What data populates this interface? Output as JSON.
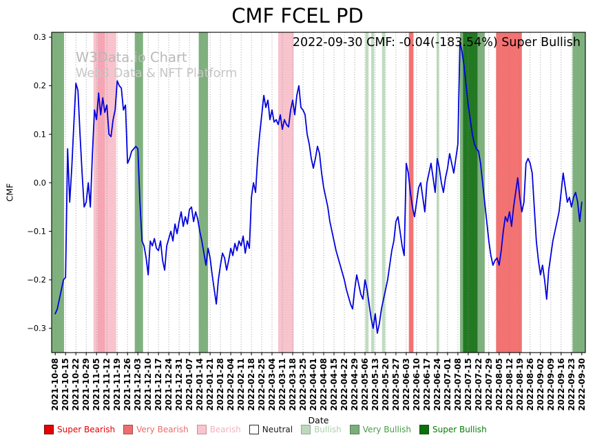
{
  "chart_data": {
    "type": "line",
    "title": "CMF FCEL PD",
    "annotation": "2022-09-30 CMF: -0.04(-183.54%) Super Bullish",
    "current": {
      "date": "2022-09-30",
      "cmf": -0.04,
      "change_pct": -183.54,
      "signal": "Super Bullish"
    },
    "watermark": {
      "line1": "W3Data.io Chart",
      "line2": "Web3 Data & NFT Platform"
    },
    "xlabel": "Date",
    "ylabel": "CMF",
    "ylim": [
      -0.35,
      0.31
    ],
    "yticks": [
      0.3,
      0.2,
      0.1,
      0.0,
      -0.1,
      -0.2,
      -0.3
    ],
    "grid": "vertical-dotted",
    "legend_position": "bottom",
    "x_tick_labels": [
      "2021-10-08",
      "2021-10-15",
      "2021-10-22",
      "2021-10-29",
      "2021-11-05",
      "2021-11-12",
      "2021-11-19",
      "2021-11-26",
      "2021-12-03",
      "2021-12-10",
      "2021-12-17",
      "2021-12-24",
      "2021-12-31",
      "2022-01-07",
      "2022-01-14",
      "2022-01-21",
      "2022-01-28",
      "2022-02-04",
      "2022-02-11",
      "2022-02-18",
      "2022-02-25",
      "2022-03-04",
      "2022-03-11",
      "2022-03-18",
      "2022-03-25",
      "2022-04-01",
      "2022-04-08",
      "2022-04-15",
      "2022-04-22",
      "2022-04-29",
      "2022-05-06",
      "2022-05-13",
      "2022-05-20",
      "2022-05-27",
      "2022-06-03",
      "2022-06-10",
      "2022-06-17",
      "2022-06-24",
      "2022-07-01",
      "2022-07-08",
      "2022-07-15",
      "2022-07-22",
      "2022-07-29",
      "2022-08-05",
      "2022-08-12",
      "2022-08-19",
      "2022-08-26",
      "2022-09-02",
      "2022-09-09",
      "2022-09-16",
      "2022-09-23",
      "2022-09-30"
    ],
    "series": [
      {
        "name": "CMF",
        "color": "#0000dd",
        "points_per_week": 5,
        "values": [
          -0.27,
          -0.26,
          -0.24,
          -0.22,
          -0.2,
          -0.195,
          0.07,
          -0.04,
          0.03,
          0.12,
          0.205,
          0.19,
          0.1,
          0.02,
          -0.05,
          -0.04,
          0,
          -0.05,
          0.06,
          0.15,
          0.13,
          0.185,
          0.14,
          0.175,
          0.145,
          0.16,
          0.1,
          0.095,
          0.13,
          0.15,
          0.21,
          0.2,
          0.195,
          0.15,
          0.16,
          0.04,
          0.05,
          0.065,
          0.07,
          0.075,
          0.07,
          -0.04,
          -0.12,
          -0.13,
          -0.155,
          -0.19,
          -0.12,
          -0.13,
          -0.115,
          -0.135,
          -0.14,
          -0.12,
          -0.16,
          -0.18,
          -0.13,
          -0.115,
          -0.1,
          -0.12,
          -0.085,
          -0.105,
          -0.08,
          -0.06,
          -0.09,
          -0.07,
          -0.085,
          -0.055,
          -0.05,
          -0.08,
          -0.06,
          -0.075,
          -0.1,
          -0.12,
          -0.145,
          -0.17,
          -0.135,
          -0.155,
          -0.19,
          -0.22,
          -0.25,
          -0.2,
          -0.17,
          -0.145,
          -0.155,
          -0.18,
          -0.16,
          -0.135,
          -0.15,
          -0.125,
          -0.14,
          -0.12,
          -0.13,
          -0.11,
          -0.145,
          -0.12,
          -0.135,
          -0.03,
          0,
          -0.02,
          0.05,
          0.1,
          0.14,
          0.18,
          0.155,
          0.17,
          0.13,
          0.15,
          0.125,
          0.13,
          0.12,
          0.14,
          0.11,
          0.13,
          0.12,
          0.115,
          0.15,
          0.17,
          0.14,
          0.18,
          0.2,
          0.155,
          0.15,
          0.14,
          0.1,
          0.08,
          0.05,
          0.03,
          0.05,
          0.075,
          0.06,
          0.02,
          -0.01,
          -0.03,
          -0.05,
          -0.08,
          -0.1,
          -0.12,
          -0.14,
          -0.155,
          -0.17,
          -0.185,
          -0.2,
          -0.22,
          -0.235,
          -0.25,
          -0.26,
          -0.22,
          -0.19,
          -0.21,
          -0.23,
          -0.24,
          -0.2,
          -0.22,
          -0.25,
          -0.28,
          -0.3,
          -0.27,
          -0.31,
          -0.29,
          -0.26,
          -0.24,
          -0.22,
          -0.2,
          -0.17,
          -0.14,
          -0.12,
          -0.08,
          -0.07,
          -0.1,
          -0.13,
          -0.15,
          0.04,
          0.02,
          -0.02,
          -0.05,
          -0.07,
          -0.04,
          -0.01,
          0,
          -0.03,
          -0.06,
          0,
          0.02,
          0.04,
          0.01,
          -0.02,
          0.05,
          0.03,
          0,
          -0.02,
          0.01,
          0.03,
          0.06,
          0.04,
          0.02,
          0.05,
          0.08,
          0.29,
          0.27,
          0.24,
          0.2,
          0.16,
          0.13,
          0.1,
          0.08,
          0.07,
          0.065,
          0.04,
          0,
          -0.04,
          -0.08,
          -0.12,
          -0.15,
          -0.17,
          -0.16,
          -0.155,
          -0.17,
          -0.14,
          -0.1,
          -0.07,
          -0.08,
          -0.06,
          -0.09,
          -0.05,
          -0.02,
          0.01,
          -0.03,
          -0.06,
          -0.04,
          0.04,
          0.05,
          0.04,
          0.02,
          -0.05,
          -0.12,
          -0.16,
          -0.19,
          -0.17,
          -0.2,
          -0.24,
          -0.18,
          -0.15,
          -0.12,
          -0.1,
          -0.08,
          -0.06,
          -0.02,
          0.02,
          -0.01,
          -0.04,
          -0.03,
          -0.05,
          -0.03,
          -0.02,
          -0.04,
          -0.08,
          -0.04
        ]
      }
    ],
    "zones": {
      "levels": {
        "super_bearish": {
          "color": "#e60000",
          "opacity": 0.85
        },
        "very_bearish": {
          "color": "#ee3b3b",
          "opacity": 0.72
        },
        "bearish": {
          "color": "#f4889b",
          "opacity": 0.5
        },
        "neutral": {
          "color": "#ffffff",
          "opacity": 1
        },
        "bullish": {
          "color": "#8cbf8c",
          "opacity": 0.55
        },
        "very_bullish": {
          "color": "#4d934d",
          "opacity": 0.72
        },
        "super_bullish": {
          "color": "#0b6b0b",
          "opacity": 0.8
        }
      },
      "bands": [
        {
          "from": -0.4,
          "to": 0.85,
          "level": "very_bullish"
        },
        {
          "from": 3.7,
          "to": 5.9,
          "level": "bearish"
        },
        {
          "from": 4.1,
          "to": 4.8,
          "level": "bearish"
        },
        {
          "from": 7.7,
          "to": 8.5,
          "level": "very_bullish"
        },
        {
          "from": 13.9,
          "to": 14.8,
          "level": "very_bullish"
        },
        {
          "from": 21.6,
          "to": 23.1,
          "level": "bearish"
        },
        {
          "from": 30.05,
          "to": 30.35,
          "level": "bullish"
        },
        {
          "from": 30.6,
          "to": 30.9,
          "level": "bullish"
        },
        {
          "from": 31.65,
          "to": 31.95,
          "level": "bullish"
        },
        {
          "from": 34.25,
          "to": 34.7,
          "level": "very_bearish"
        },
        {
          "from": 36.95,
          "to": 37.2,
          "level": "bullish"
        },
        {
          "from": 39.2,
          "to": 41.6,
          "level": "very_bullish"
        },
        {
          "from": 39.5,
          "to": 40.9,
          "level": "super_bullish"
        },
        {
          "from": 42.7,
          "to": 45.2,
          "level": "very_bearish"
        },
        {
          "from": 50.1,
          "to": 51.5,
          "level": "very_bullish"
        }
      ]
    },
    "legend": [
      {
        "label": "Super Bearish",
        "swatch": "#e60000",
        "text": "#e60000",
        "swatch_border": "#7a0000"
      },
      {
        "label": "Very Bearish",
        "swatch": "#f06d6d",
        "text": "#ee6a6a",
        "swatch_border": "#a34a4a"
      },
      {
        "label": "Bearish",
        "swatch": "#f9c4ce",
        "text": "#f3b0be",
        "swatch_border": "#c19098"
      },
      {
        "label": "Neutral",
        "swatch": "#ffffff",
        "text": "#1a1a1a",
        "swatch_border": "#2b2b2b"
      },
      {
        "label": "Bullish",
        "swatch": "#bcd9bc",
        "text": "#abd0ab",
        "swatch_border": "#8fa98f"
      },
      {
        "label": "Very Bullish",
        "swatch": "#7bae7b",
        "text": "#4a994a",
        "swatch_border": "#567f56"
      },
      {
        "label": "Super Bullish",
        "swatch": "#0d6f0d",
        "text": "#087a08",
        "swatch_border": "#0a4f0a"
      }
    ]
  }
}
